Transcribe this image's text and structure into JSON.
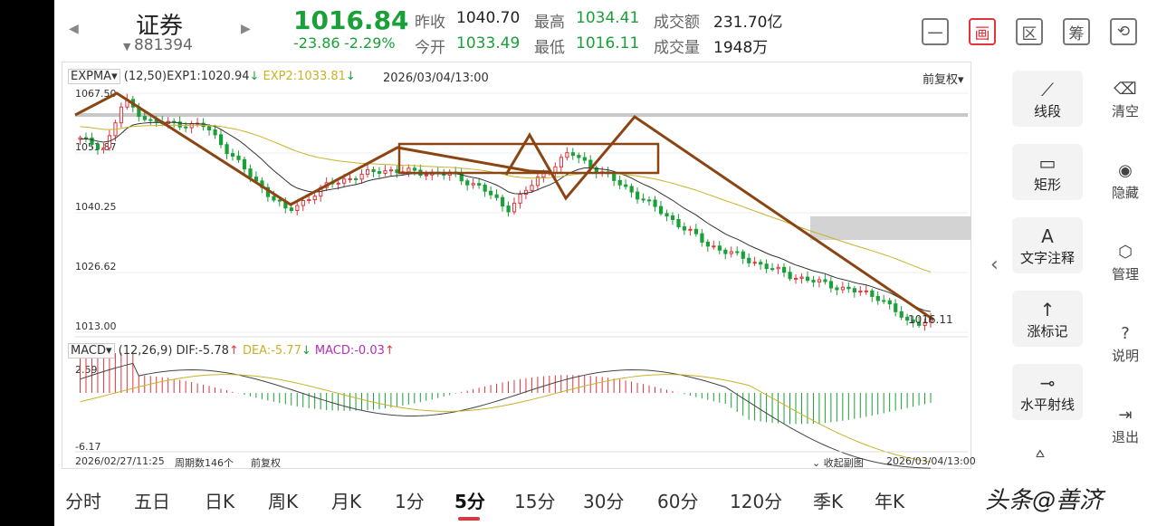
{
  "header": {
    "name": "证券",
    "code": "881394",
    "price": "1016.84",
    "change": "-23.86",
    "change_pct": "-2.29%",
    "stats": [
      {
        "label": "昨收",
        "value": "1040.70",
        "color": "normal"
      },
      {
        "label": "最高",
        "value": "1034.41",
        "color": "green"
      },
      {
        "label": "成交额",
        "value": "231.70亿",
        "color": "normal"
      },
      {
        "label": "今开",
        "value": "1033.49",
        "color": "green"
      },
      {
        "label": "最低",
        "value": "1016.11",
        "color": "green"
      },
      {
        "label": "成交量",
        "value": "1948万",
        "color": "normal"
      }
    ],
    "toolbar": [
      {
        "icon": "minus-box-icon",
        "label": "一",
        "active": false
      },
      {
        "icon": "draw-icon",
        "label": "画",
        "active": true
      },
      {
        "icon": "region-icon",
        "label": "区",
        "active": false
      },
      {
        "icon": "chips-icon",
        "label": "筹",
        "active": false
      },
      {
        "icon": "rotate-phone-icon",
        "label": "",
        "active": false
      }
    ]
  },
  "main_chart": {
    "indicator": "EXPMA",
    "params": "(12,50)",
    "exp1": "EXP1:1020.94",
    "exp2": "EXP2:1033.81",
    "cursor_time": "2026/03/04/13:00",
    "adjust": "前复权",
    "y_ticks": [
      "1067.50",
      "1053.87",
      "1040.25",
      "1026.62",
      "1013.00"
    ],
    "last_label": "1016.11"
  },
  "sub_chart": {
    "indicator": "MACD",
    "params": "(12,26,9)",
    "dif": "DIF:-5.78",
    "dea": "DEA:-5.77",
    "macd": "MACD:-0.03",
    "y_top": "2.59",
    "y_bottom": "-6.17"
  },
  "footer_bar": {
    "start_time": "2026/02/27/11:25",
    "period_count": "周期数146个",
    "adjust": "前复权",
    "collapse": "收起副图",
    "end_time": "2026/03/04/13:00"
  },
  "tools": [
    {
      "icon": "line-segment-icon",
      "label": "线段"
    },
    {
      "icon": "rectangle-icon",
      "label": "矩形"
    },
    {
      "icon": "text-note-icon",
      "label": "文字注释"
    },
    {
      "icon": "arrow-mark-icon",
      "label": "涨标记"
    },
    {
      "icon": "horizontal-ray-icon",
      "label": "水平射线"
    }
  ],
  "side_actions": [
    {
      "icon": "clear-icon",
      "label": "清空"
    },
    {
      "icon": "eye-icon",
      "label": "隐藏"
    },
    {
      "icon": "manage-icon",
      "label": "管理"
    },
    {
      "icon": "help-icon",
      "label": "说明"
    },
    {
      "icon": "exit-icon",
      "label": "退出"
    }
  ],
  "period_tabs": [
    "分时",
    "五日",
    "日K",
    "周K",
    "月K",
    "1分",
    "5分",
    "15分",
    "30分",
    "60分",
    "120分",
    "季K",
    "年K"
  ],
  "active_tab": "5分",
  "watermark": "头条@善济",
  "colors": {
    "up": "#e2343d",
    "down": "#1aa038",
    "exp2": "#c9b227",
    "drawing": "#8b4513"
  },
  "chart_data": {
    "type": "candlestick",
    "y_range": [
      1013.0,
      1067.5
    ],
    "exp1_last": 1020.94,
    "exp2_last": 1033.81,
    "macd_range": [
      -6.17,
      2.59
    ]
  }
}
